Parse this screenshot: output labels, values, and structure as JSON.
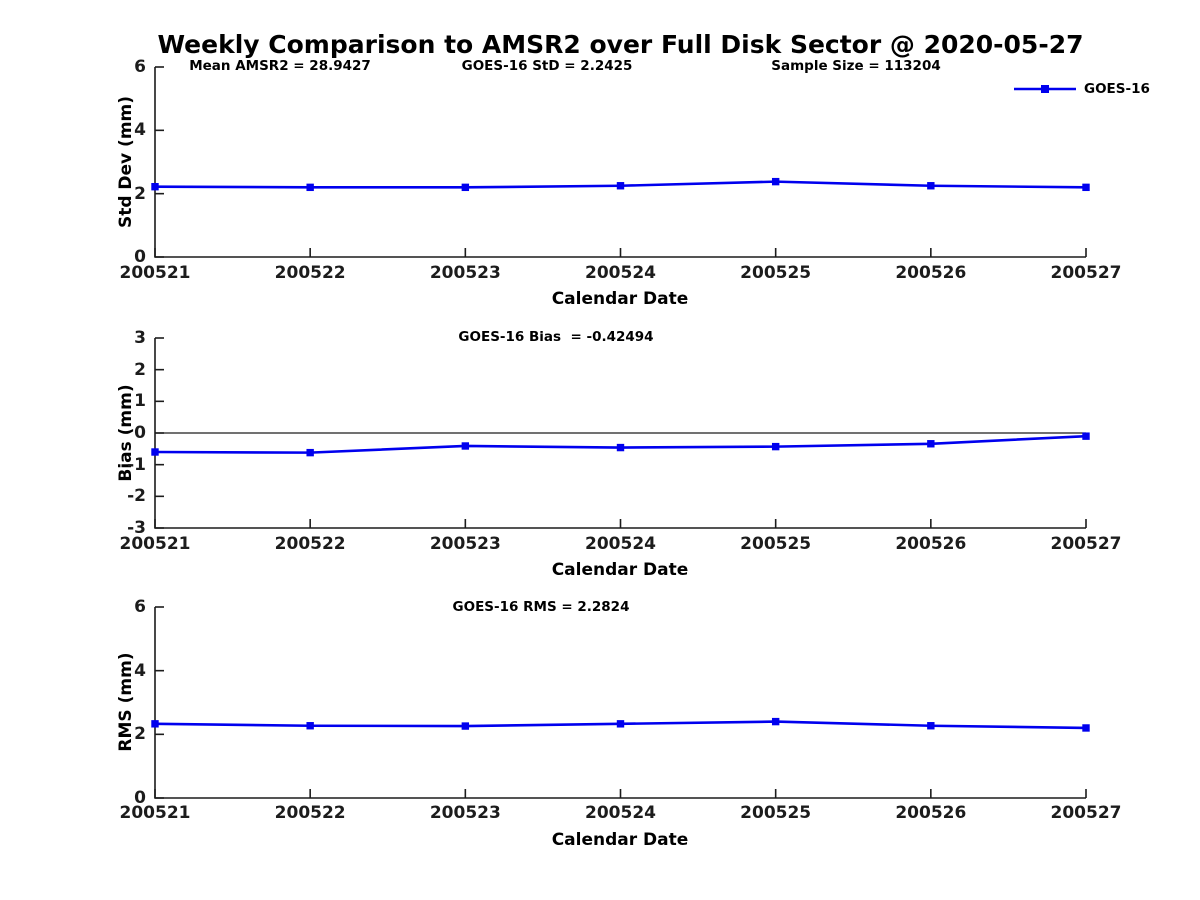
{
  "title": "Weekly Comparison to AMSR2 over Full Disk Sector @ 2020-05-27",
  "colors": {
    "line": "#0000EE",
    "axis": "#1c1c1c",
    "text": "#000000"
  },
  "chart_data": [
    {
      "type": "line",
      "id": "std-dev",
      "categories": [
        "200521",
        "200522",
        "200523",
        "200524",
        "200525",
        "200526",
        "200527"
      ],
      "series": [
        {
          "name": "GOES-16",
          "values": [
            2.22,
            2.2,
            2.2,
            2.25,
            2.38,
            2.25,
            2.2
          ]
        }
      ],
      "xlabel": "Calendar Date",
      "ylabel": "Std Dev (mm)",
      "ylim": [
        0,
        6
      ],
      "yticks": [
        0,
        2,
        4,
        6
      ],
      "annotations": [
        "Mean AMSR2 = 28.9427",
        "GOES-16 StD = 2.2425",
        "Sample Size = 113204"
      ],
      "legend": [
        "GOES-16"
      ],
      "legend_position": "top-right",
      "grid": false,
      "zero_line": false,
      "marker": "square"
    },
    {
      "type": "line",
      "id": "bias",
      "categories": [
        "200521",
        "200522",
        "200523",
        "200524",
        "200525",
        "200526",
        "200527"
      ],
      "series": [
        {
          "name": "GOES-16",
          "values": [
            -0.6,
            -0.62,
            -0.41,
            -0.46,
            -0.43,
            -0.34,
            -0.1
          ]
        }
      ],
      "xlabel": "Calendar Date",
      "ylabel": "Bias (mm)",
      "ylim": [
        -3,
        3
      ],
      "yticks": [
        3,
        2,
        1,
        0,
        -1,
        -2,
        -3
      ],
      "annotations": [
        "GOES-16 Bias  = -0.42494"
      ],
      "legend": [],
      "grid": false,
      "zero_line": true,
      "marker": "square"
    },
    {
      "type": "line",
      "id": "rms",
      "categories": [
        "200521",
        "200522",
        "200523",
        "200524",
        "200525",
        "200526",
        "200527"
      ],
      "series": [
        {
          "name": "GOES-16",
          "values": [
            2.33,
            2.27,
            2.26,
            2.33,
            2.4,
            2.27,
            2.2
          ]
        }
      ],
      "xlabel": "Calendar Date",
      "ylabel": "RMS (mm)",
      "ylim": [
        0,
        6
      ],
      "yticks": [
        0,
        2,
        4,
        6
      ],
      "annotations": [
        "GOES-16 RMS = 2.2824"
      ],
      "legend": [],
      "grid": false,
      "zero_line": false,
      "marker": "square"
    }
  ]
}
